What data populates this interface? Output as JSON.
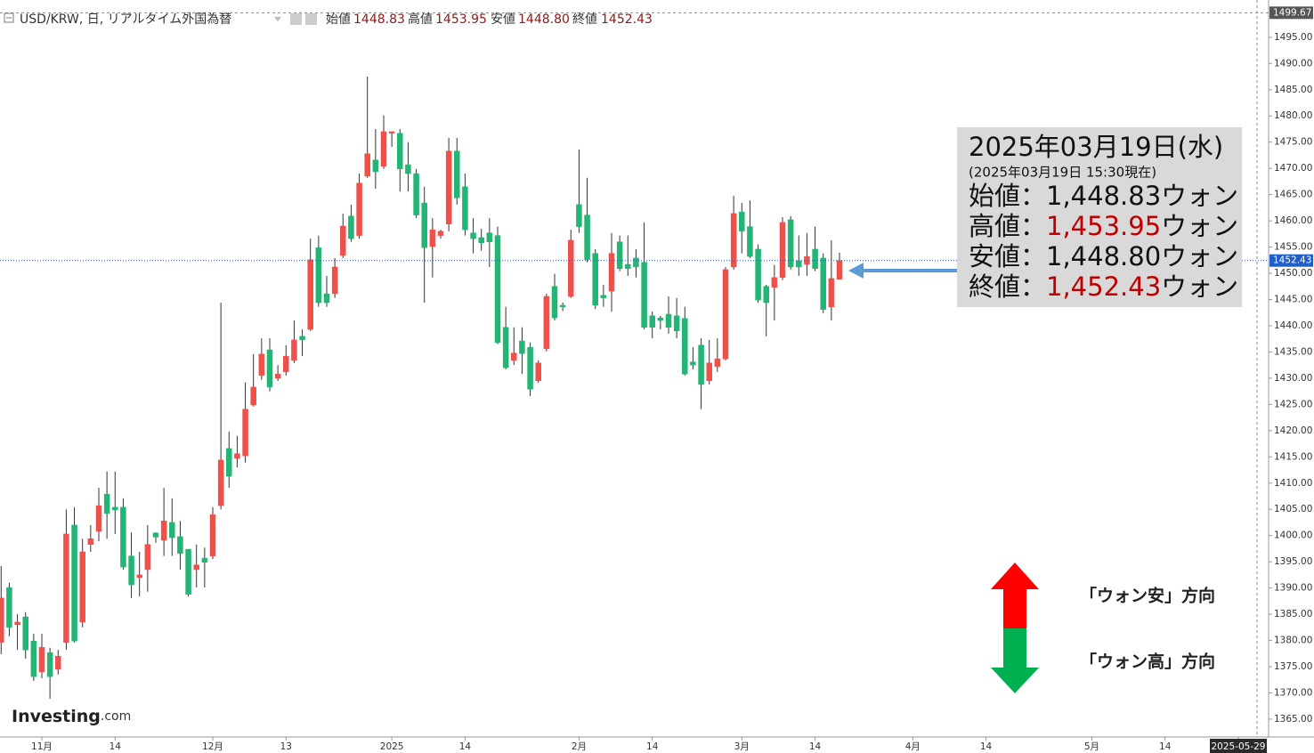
{
  "chart_data": {
    "type": "candlestick",
    "header": {
      "symbol": "USD/KRW, 日, リアルタイム外国為替",
      "ohlc": [
        {
          "label": "始値",
          "value": "1448.83"
        },
        {
          "label": "高値",
          "value": "1453.95"
        },
        {
          "label": "安値",
          "value": "1448.80"
        },
        {
          "label": "終値",
          "value": "1452.43"
        }
      ]
    },
    "categories": [
      null,
      null,
      null,
      null,
      null,
      "11月",
      null,
      null,
      null,
      null,
      null,
      null,
      null,
      null,
      "14",
      null,
      null,
      null,
      null,
      null,
      null,
      null,
      null,
      null,
      null,
      null,
      "12月",
      null,
      null,
      null,
      null,
      null,
      null,
      null,
      null,
      "13",
      null,
      null,
      null,
      null,
      null,
      null,
      null,
      null,
      null,
      null,
      null,
      null,
      "2025",
      null,
      null,
      null,
      null,
      null,
      null,
      null,
      null,
      "14",
      null,
      null,
      null,
      null,
      null,
      null,
      null,
      null,
      null,
      null,
      null,
      null,
      null,
      "2月",
      null,
      null,
      null,
      null,
      null,
      null,
      null,
      null,
      "14",
      null,
      null,
      null,
      null,
      null,
      null,
      null,
      null,
      null,
      null,
      "3月",
      null,
      null,
      null,
      null,
      null,
      null,
      null,
      null,
      "14",
      null,
      null,
      null,
      null,
      null,
      null,
      null,
      null,
      null,
      null,
      null,
      "4月",
      null,
      null,
      null,
      null,
      null,
      null,
      null,
      null,
      "14",
      null,
      null,
      null,
      null,
      null,
      null,
      null,
      null,
      null,
      null,
      null,
      null,
      "5月",
      null,
      null,
      null,
      null,
      null,
      null,
      null,
      null,
      "14",
      null,
      null,
      null,
      null,
      null,
      null,
      null,
      null,
      "2025-05-29",
      null,
      null,
      null
    ],
    "open": [
      1379.6,
      1390.1,
      1383.0,
      1384.5,
      1379.9,
      1374.0,
      1377.7,
      1374.5,
      1379.6,
      1402.0,
      1383.5,
      1398.3,
      1400.8,
      1407.9,
      1405.4,
      1405.4,
      1396.1,
      1392.0,
      1393.5,
      1400.5,
      1399.1,
      1402.5,
      1399.8,
      1397.4,
      1393.5,
      1395.7,
      1396.1,
      1405.7,
      1416.6,
      1414.7,
      1415.2,
      1424.9,
      1430.5,
      1435.4,
      1430.0,
      1431.2,
      1433.4,
      1438.0,
      1439.3,
      1454.9,
      1446.1,
      1446.1,
      1453.4,
      1460.9,
      1457.2,
      1468.5,
      1471.6,
      1470.4,
      1476.7,
      1476.7,
      1470.7,
      1469.0,
      1463.4,
      1455.1,
      1457.2,
      1459.4,
      1473.3,
      1466.5,
      1457.7,
      1456.8,
      1457.7,
      1457.2,
      1439.7,
      1433.4,
      1437.1,
      1435.9,
      1429.5,
      1435.6,
      1447.5,
      1443.9,
      1445.6,
      1463.1,
      1461.1,
      1453.8,
      1445.8,
      1446.6,
      1456.0,
      1451.7,
      1452.9,
      1452.1,
      1441.9,
      1441.5,
      1442.2,
      1441.9,
      1441.4,
      1433.1,
      1436.3,
      1429.5,
      1432.2,
      1433.7,
      1451.2,
      1461.7,
      1458.9,
      1454.6,
      1447.5,
      1447.3,
      1449.2,
      1460.2,
      1452.4,
      1451.7,
      1454.6,
      1452.9,
      1443.6,
      1448.83,
      null,
      null,
      null,
      null,
      null,
      null,
      null,
      null,
      null,
      null,
      null,
      null,
      null,
      null,
      null,
      null,
      null,
      null,
      null,
      null,
      null,
      null,
      null,
      null,
      null,
      null,
      null,
      null,
      null,
      null,
      null,
      null,
      null,
      null,
      null,
      null,
      null,
      null,
      null,
      null,
      null,
      null,
      null,
      null,
      null,
      null,
      null,
      null,
      null,
      null,
      null,
      null
    ],
    "high": [
      1394.2,
      1391.0,
      1385.0,
      1385.4,
      1381.3,
      1381.3,
      1378.6,
      1378.2,
      1405.0,
      1405.4,
      1399.4,
      1402.0,
      1409.1,
      1412.2,
      1412.2,
      1407.1,
      1400.6,
      1396.9,
      1402.0,
      1400.6,
      1409.1,
      1407.1,
      1402.8,
      1397.4,
      1398.3,
      1397.7,
      1405.4,
      1444.4,
      1419.8,
      1419.0,
      1429.2,
      1434.6,
      1437.6,
      1437.6,
      1432.5,
      1436.3,
      1441.0,
      1439.3,
      1456.6,
      1457.2,
      1449.5,
      1452.9,
      1461.4,
      1463.1,
      1469.0,
      1487.5,
      1477.5,
      1480.1,
      1477.0,
      1477.5,
      1475.0,
      1469.9,
      1466.5,
      1460.5,
      1458.3,
      1475.8,
      1475.8,
      1469.0,
      1460.5,
      1458.5,
      1460.5,
      1458.9,
      1443.6,
      1439.7,
      1439.7,
      1436.8,
      1433.4,
      1446.1,
      1449.9,
      1444.4,
      1458.3,
      1473.6,
      1468.2,
      1454.6,
      1447.8,
      1457.7,
      1457.2,
      1457.2,
      1454.6,
      1459.7,
      1442.7,
      1441.9,
      1445.6,
      1445.3,
      1443.6,
      1435.9,
      1437.6,
      1437.3,
      1437.6,
      1451.2,
      1464.8,
      1463.4,
      1463.9,
      1455.5,
      1447.8,
      1451.6,
      1460.7,
      1460.9,
      1457.2,
      1457.7,
      1458.9,
      1453.8,
      1456.3,
      1453.95,
      null,
      null,
      null,
      null,
      null,
      null,
      null,
      null,
      null,
      null,
      null,
      null,
      null,
      null,
      null,
      null,
      null,
      null,
      null,
      null,
      null,
      null,
      null,
      null,
      null,
      null,
      null,
      null,
      null,
      null,
      null,
      null,
      null,
      null,
      null,
      null,
      null,
      null,
      null,
      null,
      null,
      null,
      null,
      null,
      null,
      null,
      null,
      null,
      null,
      null,
      null,
      null
    ],
    "low": [
      1377.4,
      1380.8,
      1378.2,
      1376.5,
      1372.3,
      1372.8,
      1368.9,
      1373.5,
      1378.2,
      1379.6,
      1382.5,
      1396.9,
      1398.9,
      1399.4,
      1400.3,
      1393.5,
      1388.1,
      1388.4,
      1389.3,
      1398.6,
      1396.1,
      1396.1,
      1393.5,
      1388.4,
      1390.1,
      1390.1,
      1395.5,
      1405.0,
      1409.1,
      1413.0,
      1413.9,
      1424.6,
      1429.7,
      1427.5,
      1429.5,
      1430.5,
      1432.9,
      1434.2,
      1439.0,
      1443.6,
      1443.6,
      1445.3,
      1452.9,
      1456.0,
      1456.6,
      1468.2,
      1466.1,
      1469.9,
      1474.1,
      1465.6,
      1465.6,
      1460.5,
      1444.4,
      1449.2,
      1456.6,
      1458.0,
      1463.1,
      1457.2,
      1453.8,
      1454.3,
      1451.2,
      1436.5,
      1431.7,
      1432.5,
      1430.8,
      1426.6,
      1429.1,
      1435.1,
      1441.0,
      1442.8,
      1445.3,
      1457.7,
      1452.1,
      1443.2,
      1443.6,
      1442.7,
      1450.4,
      1449.5,
      1449.2,
      1439.3,
      1437.6,
      1439.3,
      1438.5,
      1437.6,
      1430.5,
      1431.7,
      1424.1,
      1428.8,
      1431.2,
      1433.4,
      1450.7,
      1453.8,
      1452.9,
      1444.4,
      1438.0,
      1441.0,
      1448.7,
      1450.7,
      1449.5,
      1449.5,
      1450.4,
      1442.4,
      1441.0,
      1448.8,
      null,
      null,
      null,
      null,
      null,
      null,
      null,
      null,
      null,
      null,
      null,
      null,
      null,
      null,
      null,
      null,
      null,
      null,
      null,
      null,
      null,
      null,
      null,
      null,
      null,
      null,
      null,
      null,
      null,
      null,
      null,
      null,
      null,
      null,
      null,
      null,
      null,
      null,
      null,
      null,
      null,
      null,
      null,
      null,
      null,
      null,
      null,
      null,
      null,
      null,
      null,
      null
    ],
    "close": [
      1388.1,
      1382.5,
      1383.5,
      1378.2,
      1373.1,
      1378.7,
      1373.1,
      1377.0,
      1400.3,
      1379.9,
      1396.9,
      1399.4,
      1405.7,
      1404.2,
      1404.9,
      1394.0,
      1390.6,
      1392.5,
      1398.3,
      1399.7,
      1402.8,
      1399.6,
      1396.6,
      1388.8,
      1394.4,
      1394.9,
      1404.0,
      1414.4,
      1411.3,
      1415.6,
      1424.1,
      1428.3,
      1434.6,
      1428.3,
      1430.8,
      1434.2,
      1437.3,
      1437.3,
      1452.6,
      1444.4,
      1444.4,
      1451.2,
      1459.0,
      1456.6,
      1467.2,
      1472.8,
      1469.4,
      1477.0,
      1477.0,
      1469.9,
      1469.0,
      1461.1,
      1454.9,
      1458.3,
      1458.0,
      1473.3,
      1464.4,
      1458.3,
      1456.6,
      1455.8,
      1456.0,
      1436.8,
      1432.0,
      1434.8,
      1434.7,
      1427.9,
      1432.9,
      1445.6,
      1441.5,
      1443.6,
      1456.3,
      1458.9,
      1452.6,
      1443.9,
      1445.3,
      1453.8,
      1450.9,
      1450.9,
      1451.2,
      1439.7,
      1439.7,
      1441.0,
      1439.7,
      1439.0,
      1430.8,
      1432.5,
      1428.8,
      1432.9,
      1433.7,
      1450.7,
      1461.4,
      1458.0,
      1453.2,
      1444.9,
      1444.4,
      1449.2,
      1459.7,
      1451.2,
      1451.2,
      1453.2,
      1450.9,
      1443.1,
      1449.0,
      1452.43,
      null,
      null,
      null,
      null,
      null,
      null,
      null,
      null,
      null,
      null,
      null,
      null,
      null,
      null,
      null,
      null,
      null,
      null,
      null,
      null,
      null,
      null,
      null,
      null,
      null,
      null,
      null,
      null,
      null,
      null,
      null,
      null,
      null,
      null,
      null,
      null,
      null,
      null,
      null,
      null,
      null,
      null,
      null,
      null,
      null,
      null,
      null,
      null,
      null,
      null,
      null,
      null
    ],
    "up_color": "#f0504a",
    "down_color": "#22b573",
    "grid": false,
    "ylim": [
      1361.6,
      1502.1
    ],
    "yticks": [
      {
        "value": 1365,
        "label": "1365.00"
      },
      {
        "value": 1370,
        "label": "1370.00"
      },
      {
        "value": 1375,
        "label": "1375.00"
      },
      {
        "value": 1380,
        "label": "1380.00"
      },
      {
        "value": 1385,
        "label": "1385.00"
      },
      {
        "value": 1390,
        "label": "1390.00"
      },
      {
        "value": 1395,
        "label": "1395.00"
      },
      {
        "value": 1400,
        "label": "1400.00"
      },
      {
        "value": 1405,
        "label": "1405.00"
      },
      {
        "value": 1410,
        "label": "1410.00"
      },
      {
        "value": 1415,
        "label": "1415.00"
      },
      {
        "value": 1420,
        "label": "1420.00"
      },
      {
        "value": 1425,
        "label": "1425.00"
      },
      {
        "value": 1430,
        "label": "1430.00"
      },
      {
        "value": 1435,
        "label": "1435.00"
      },
      {
        "value": 1440,
        "label": "1440.00"
      },
      {
        "value": 1445,
        "label": "1445.00"
      },
      {
        "value": 1450,
        "label": "1450.00"
      },
      {
        "value": 1455,
        "label": "1455.00"
      },
      {
        "value": 1460,
        "label": "1460.00"
      },
      {
        "value": 1465,
        "label": "1465.00"
      },
      {
        "value": 1470,
        "label": "1470.00"
      },
      {
        "value": 1475,
        "label": "1475.00"
      },
      {
        "value": 1480,
        "label": "1480.00"
      },
      {
        "value": 1485,
        "label": "1485.00"
      },
      {
        "value": 1490,
        "label": "1490.00"
      },
      {
        "value": 1495,
        "label": "1495.00"
      }
    ],
    "last_price": {
      "value": 1452.43,
      "label": "1452.43"
    },
    "top_marker": {
      "value": 1499.67,
      "label": "1499.67"
    },
    "info_box": {
      "date": "2025年03月19日(水)",
      "as_of": "(2025年03月19日 15:30現在)",
      "lines": [
        {
          "label": "始値：",
          "value": "1,448.83",
          "unit": "ウォン",
          "value_color": "#111111"
        },
        {
          "label": "高値：",
          "value": "1,453.95",
          "unit": "ウォン",
          "value_color": "#c00000"
        },
        {
          "label": "安値：",
          "value": "1,448.80",
          "unit": "ウォン",
          "value_color": "#111111"
        },
        {
          "label": "終値：",
          "value": "1,452.43",
          "unit": "ウォン",
          "value_color": "#c00000"
        }
      ]
    },
    "annotations": {
      "up": "「ウォン安」方向",
      "down": "「ウォン高」方向"
    },
    "logo": "Investing",
    "logo_suffix": ".com"
  }
}
